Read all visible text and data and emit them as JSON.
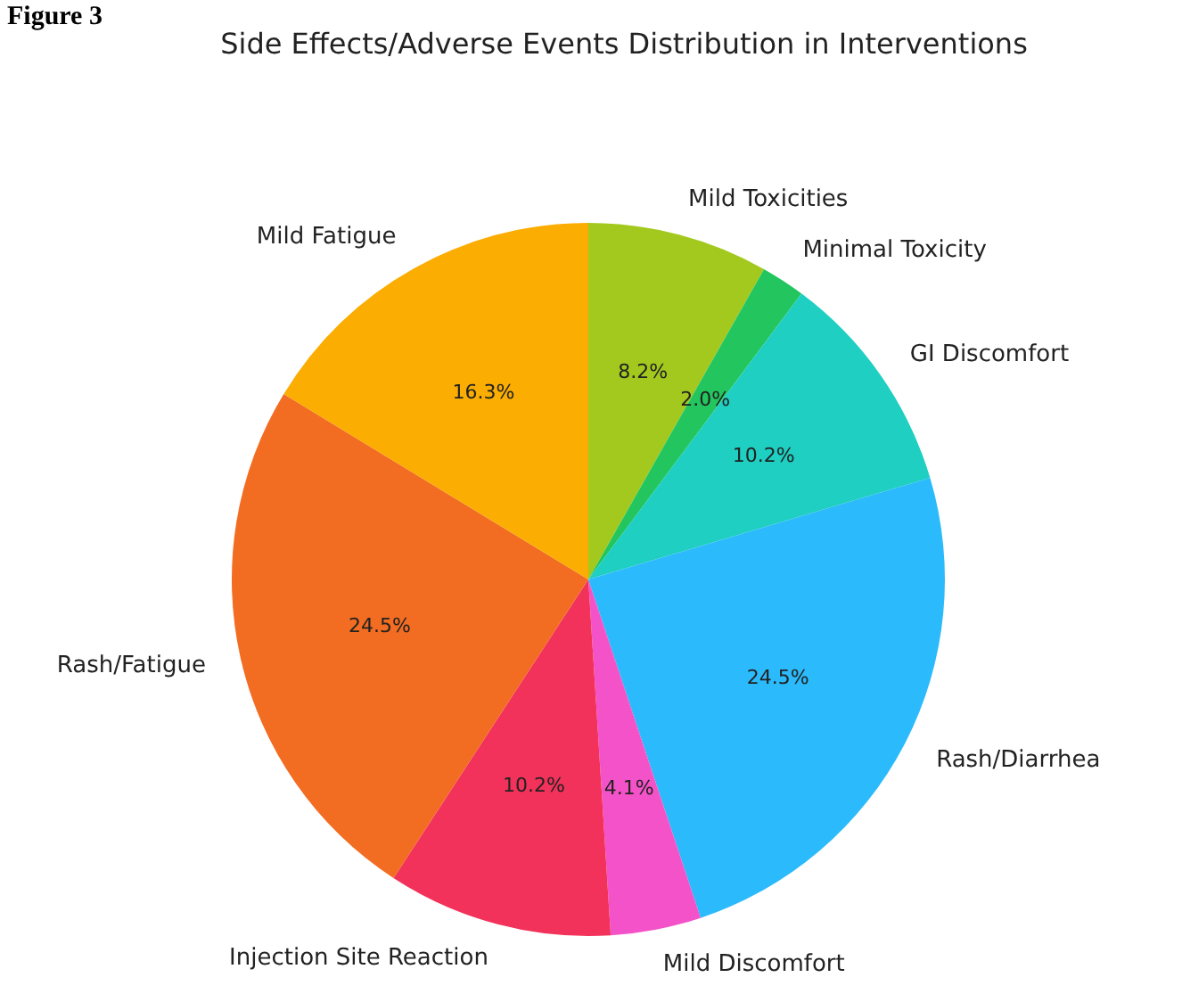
{
  "chart_data": {
    "type": "pie",
    "title": "Side Effects/Adverse Events Distribution in Interventions",
    "categories": [
      "Mild Toxicities",
      "Minimal Toxicity",
      "GI Discomfort",
      "Rash/Diarrhea",
      "Mild Discomfort",
      "Injection Site Reaction",
      "Rash/Fatigue",
      "Mild Fatigue"
    ],
    "values": [
      8.2,
      2.0,
      10.2,
      24.5,
      4.1,
      10.2,
      24.5,
      16.3
    ],
    "value_labels": [
      "8.2%",
      "2.0%",
      "10.2%",
      "24.5%",
      "4.1%",
      "10.2%",
      "24.5%",
      "16.3%"
    ],
    "colors": [
      "#a3c91f",
      "#22c55e",
      "#1ecfc2",
      "#2bbafb",
      "#f452c8",
      "#f2325a",
      "#f26c22",
      "#fbad02"
    ],
    "annotations": [
      "Figure 3"
    ],
    "legend": false
  }
}
